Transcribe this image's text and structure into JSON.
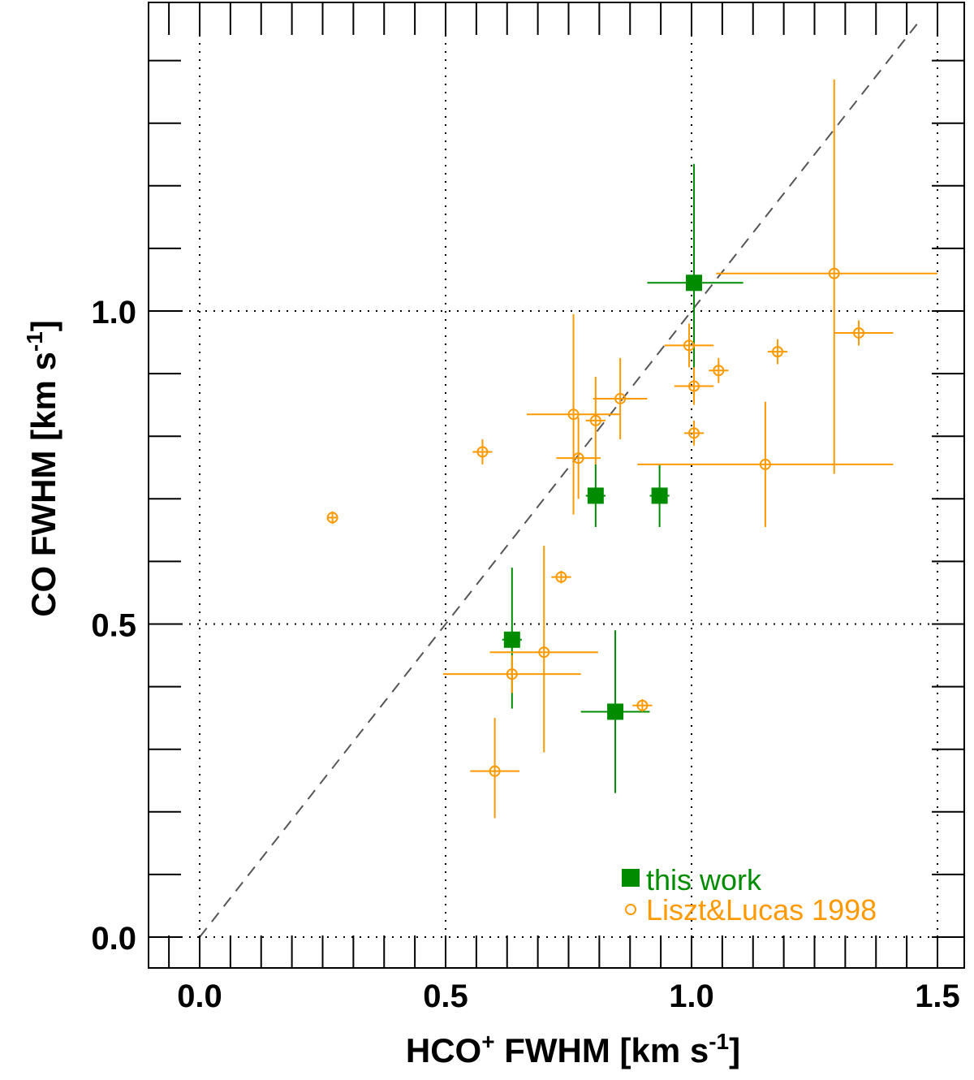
{
  "chart_data": {
    "type": "scatter",
    "xlabel": {
      "base": "HCO",
      "sup": "+",
      "rest": " FWHM [km s",
      "unit_sup": "-1",
      "close": "]"
    },
    "ylabel": {
      "base": "CO FWHM [km s",
      "unit_sup": "-1",
      "close": "]"
    },
    "xlim": [
      -0.1,
      1.52
    ],
    "ylim": [
      -0.05,
      1.5
    ],
    "xticks": [
      0.0,
      0.5,
      1.0,
      1.5
    ],
    "yticks": [
      0.0,
      0.5,
      1.0
    ],
    "xtick_labels": [
      "0.0",
      "0.5",
      "1.0",
      "1.5"
    ],
    "ytick_labels": [
      "0.0",
      "0.5",
      "1.0"
    ],
    "x_minor_step": 0.0625,
    "y_minor_step": 0.1,
    "grid": true,
    "reference_line": {
      "style": "dashed",
      "from": [
        0,
        0
      ],
      "to": [
        1.46,
        1.46
      ],
      "color": "#555555"
    },
    "legend": {
      "placement": "bottom-right",
      "entries": [
        {
          "label": "this work",
          "marker": "filled-square",
          "color": "#008c00"
        },
        {
          "label": "Liszt&Lucas 1998",
          "marker": "open-circle",
          "color": "#ff9900"
        }
      ]
    },
    "series": [
      {
        "name": "this work",
        "marker": "filled-square",
        "color": "#008c00",
        "points": [
          {
            "x": 1.005,
            "y": 1.045,
            "xerr": [
              0.095,
              0.1
            ],
            "yerr": [
              0.17,
              0.19
            ]
          },
          {
            "x": 0.805,
            "y": 0.705,
            "xerr": [
              0.02,
              0.02
            ],
            "yerr": [
              0.05,
              0.05
            ]
          },
          {
            "x": 0.935,
            "y": 0.705,
            "xerr": [
              0.02,
              0.02
            ],
            "yerr": [
              0.05,
              0.05
            ]
          },
          {
            "x": 0.635,
            "y": 0.475,
            "xerr": [
              0.02,
              0.02
            ],
            "yerr": [
              0.11,
              0.115
            ]
          },
          {
            "x": 0.845,
            "y": 0.36,
            "xerr": [
              0.07,
              0.07
            ],
            "yerr": [
              0.13,
              0.13
            ]
          }
        ]
      },
      {
        "name": "Liszt&Lucas 1998",
        "marker": "open-circle",
        "color": "#ff9900",
        "points": [
          {
            "x": 1.29,
            "y": 1.06,
            "xerr": [
              0.24,
              0.21
            ],
            "yerr": [
              0.32,
              0.31
            ]
          },
          {
            "x": 1.34,
            "y": 0.965,
            "xerr": [
              0.05,
              0.07
            ],
            "yerr": [
              0.02,
              0.02
            ]
          },
          {
            "x": 0.995,
            "y": 0.945,
            "xerr": [
              0.05,
              0.05
            ],
            "yerr": [
              0.035,
              0.035
            ]
          },
          {
            "x": 1.175,
            "y": 0.935,
            "xerr": [
              0.02,
              0.02
            ],
            "yerr": [
              0.02,
              0.02
            ]
          },
          {
            "x": 1.055,
            "y": 0.905,
            "xerr": [
              0.02,
              0.02
            ],
            "yerr": [
              0.02,
              0.02
            ]
          },
          {
            "x": 1.005,
            "y": 0.88,
            "xerr": [
              0.04,
              0.04
            ],
            "yerr": [
              0.03,
              0.03
            ]
          },
          {
            "x": 0.855,
            "y": 0.86,
            "xerr": [
              0.055,
              0.055
            ],
            "yerr": [
              0.065,
              0.065
            ]
          },
          {
            "x": 0.76,
            "y": 0.835,
            "xerr": [
              0.095,
              0.095
            ],
            "yerr": [
              0.16,
              0.16
            ]
          },
          {
            "x": 0.805,
            "y": 0.825,
            "xerr": [
              0.02,
              0.02
            ],
            "yerr": [
              0.07,
              0.07
            ]
          },
          {
            "x": 1.005,
            "y": 0.805,
            "xerr": [
              0.02,
              0.02
            ],
            "yerr": [
              0.02,
              0.02
            ]
          },
          {
            "x": 0.575,
            "y": 0.775,
            "xerr": [
              0.02,
              0.02
            ],
            "yerr": [
              0.02,
              0.02
            ]
          },
          {
            "x": 0.77,
            "y": 0.765,
            "xerr": [
              0.045,
              0.045
            ],
            "yerr": [
              0.065,
              0.065
            ]
          },
          {
            "x": 1.15,
            "y": 0.755,
            "xerr": [
              0.26,
              0.26
            ],
            "yerr": [
              0.1,
              0.1
            ]
          },
          {
            "x": 0.27,
            "y": 0.67,
            "xerr": [
              0.01,
              0.01
            ],
            "yerr": [
              0.01,
              0.01
            ]
          },
          {
            "x": 0.735,
            "y": 0.575,
            "xerr": [
              0.02,
              0.02
            ],
            "yerr": [
              0.01,
              0.01
            ]
          },
          {
            "x": 0.7,
            "y": 0.455,
            "xerr": [
              0.11,
              0.11
            ],
            "yerr": [
              0.16,
              0.17
            ]
          },
          {
            "x": 0.635,
            "y": 0.42,
            "xerr": [
              0.14,
              0.14
            ],
            "yerr": [
              0.03,
              0.03
            ]
          },
          {
            "x": 0.9,
            "y": 0.37,
            "xerr": [
              0.02,
              0.02
            ],
            "yerr": [
              0.01,
              0.01
            ]
          },
          {
            "x": 0.6,
            "y": 0.265,
            "xerr": [
              0.05,
              0.05
            ],
            "yerr": [
              0.075,
              0.085
            ]
          }
        ]
      }
    ]
  }
}
